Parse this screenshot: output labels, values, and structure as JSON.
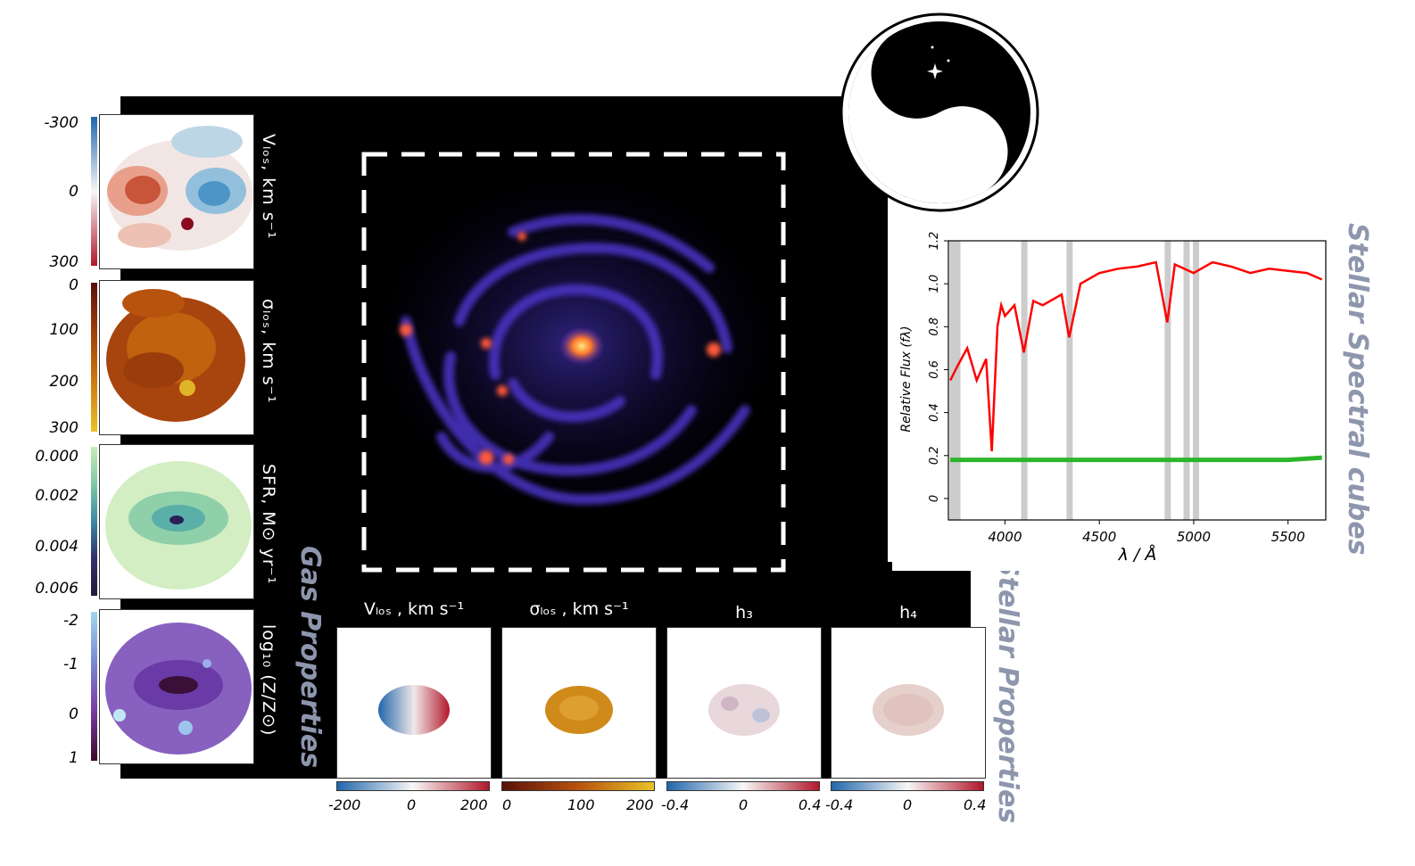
{
  "gas_panels": [
    {
      "label": "Vₗₒₛ, km s⁻¹",
      "ticks": [
        "-300",
        "0",
        "300"
      ]
    },
    {
      "label": "σₗₒₛ, km s⁻¹",
      "ticks": [
        "0",
        "100",
        "200",
        "300"
      ]
    },
    {
      "label": "SFR, M⊙ yr⁻¹",
      "ticks": [
        "0.000",
        "0.002",
        "0.004",
        "0.006"
      ]
    },
    {
      "label": "log₁₀ (Z/Z⊙)",
      "ticks": [
        "-2",
        "-1",
        "0",
        "1"
      ]
    }
  ],
  "stellar_panels": [
    {
      "title": "Vₗₒₛ , km s⁻¹",
      "ticks": [
        "-200",
        "0",
        "200"
      ]
    },
    {
      "title": "σₗₒₛ , km s⁻¹",
      "ticks": [
        "0",
        "100",
        "200"
      ]
    },
    {
      "title": "h₃",
      "ticks": [
        "-0.4",
        "0",
        "0.4"
      ]
    },
    {
      "title": "h₄",
      "ticks": [
        "-0.4",
        "0",
        "0.4"
      ]
    }
  ],
  "section_titles": {
    "gas": "Gas Properties",
    "stellar": "Stellar Properties",
    "spectral": "Stellar Spectral cubes"
  },
  "chart_data": {
    "type": "line",
    "xlabel": "λ / Å",
    "ylabel": "Relative Flux (fλ)",
    "xlim": [
      3700,
      5700
    ],
    "ylim": [
      -0.1,
      1.2
    ],
    "xticks": [
      "4000",
      "4500",
      "5000",
      "5500"
    ],
    "yticks": [
      "0",
      "0.2",
      "0.4",
      "0.6",
      "0.8",
      "1.0",
      "1.2"
    ],
    "grey_bands": [
      3720,
      3745,
      4100,
      4340,
      4860,
      4960,
      5010
    ],
    "series": [
      {
        "color": "#ff0000",
        "x": [
          3710,
          3750,
          3800,
          3850,
          3900,
          3930,
          3960,
          3980,
          4000,
          4050,
          4100,
          4150,
          4200,
          4300,
          4340,
          4400,
          4500,
          4600,
          4700,
          4800,
          4860,
          4900,
          5000,
          5100,
          5200,
          5300,
          5400,
          5500,
          5600,
          5680
        ],
        "y": [
          0.55,
          0.62,
          0.7,
          0.55,
          0.65,
          0.22,
          0.8,
          0.9,
          0.85,
          0.9,
          0.68,
          0.92,
          0.9,
          0.95,
          0.75,
          1.0,
          1.05,
          1.07,
          1.08,
          1.1,
          0.82,
          1.09,
          1.05,
          1.1,
          1.08,
          1.05,
          1.07,
          1.06,
          1.05,
          1.02
        ]
      },
      {
        "color": "#2bb52b",
        "x": [
          3710,
          4000,
          4500,
          5000,
          5500,
          5680
        ],
        "y": [
          0.18,
          0.18,
          0.18,
          0.18,
          0.18,
          0.19
        ]
      }
    ]
  },
  "colors": {
    "velocity_blue": "#2166ac",
    "velocity_red": "#b2182b",
    "spectrum": "#ff0000",
    "residual": "#2bb52b",
    "band": "#cccccc",
    "title": "#8e96ad"
  }
}
